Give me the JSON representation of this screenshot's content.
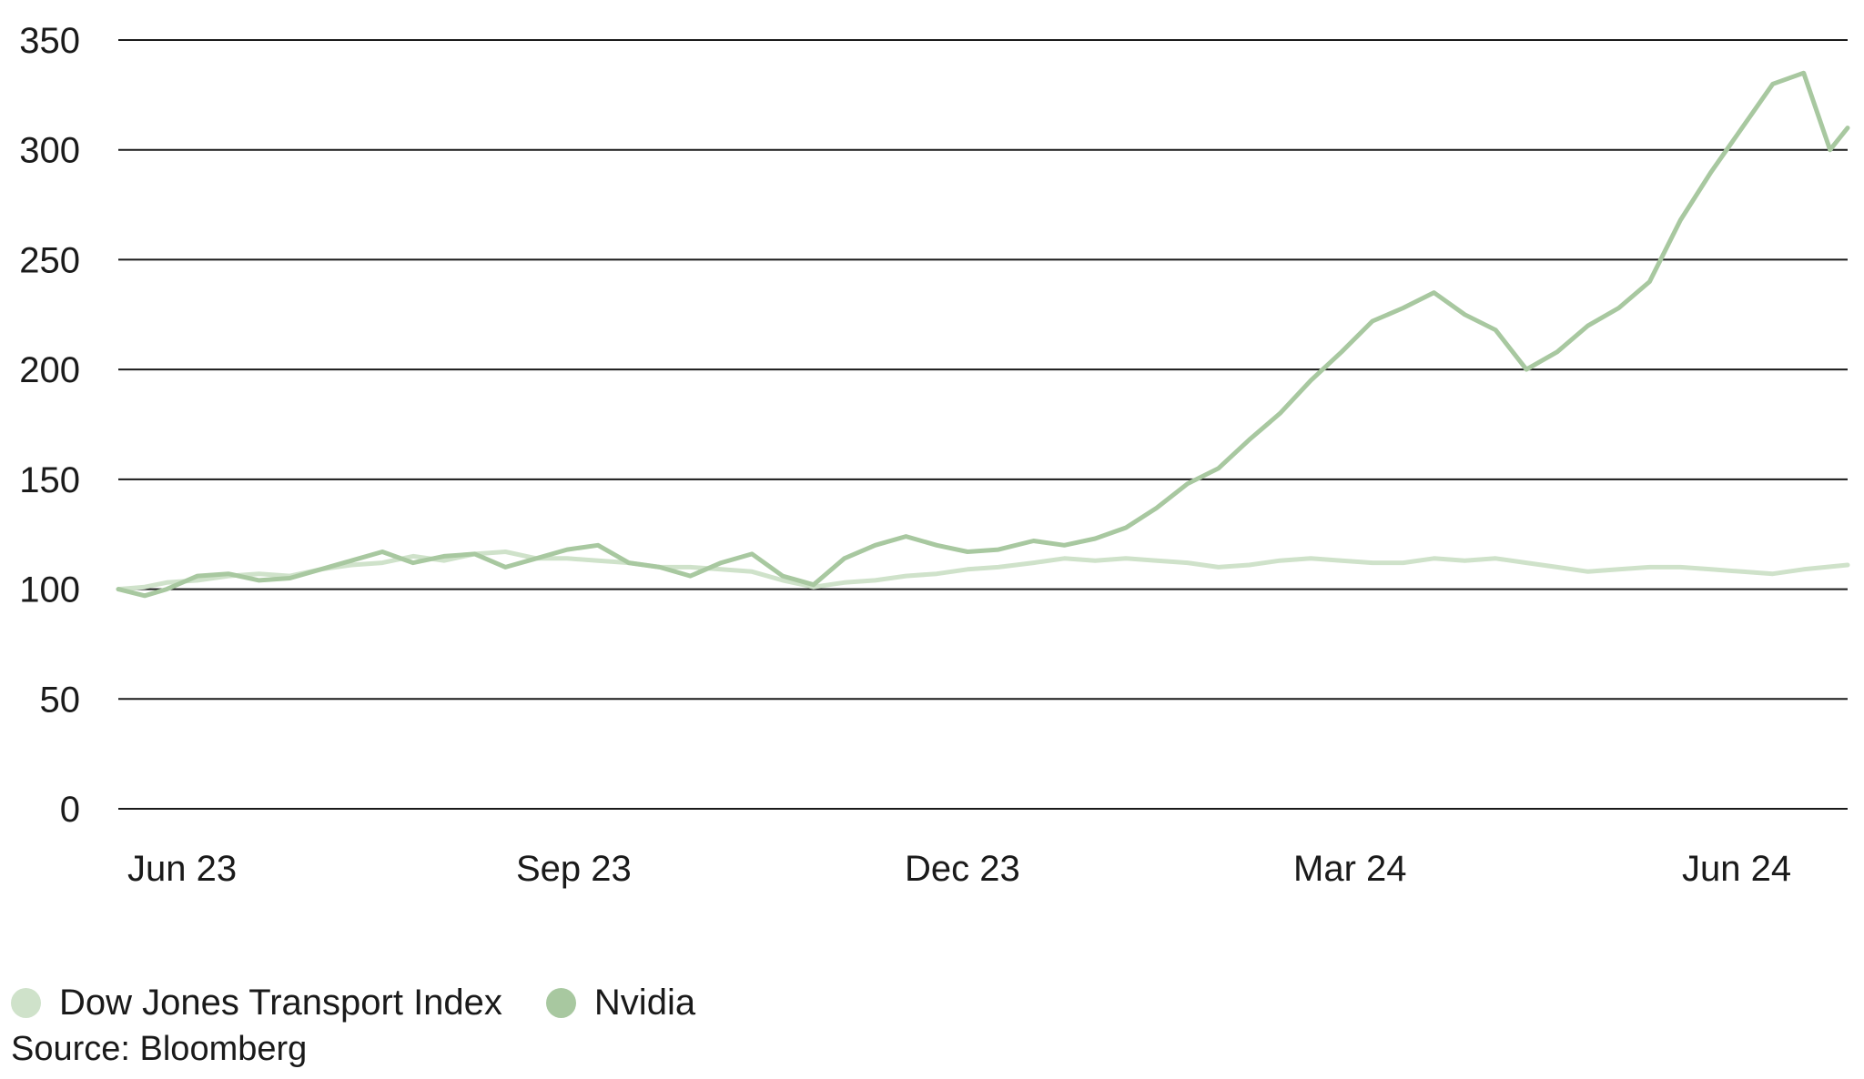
{
  "chart_data": {
    "type": "line",
    "x_ticks": [
      "Jun 23",
      "Sep 23",
      "Dec 23",
      "Mar 24",
      "Jun 24"
    ],
    "y_ticks": [
      0,
      50,
      100,
      150,
      200,
      250,
      300,
      350
    ],
    "ylim": [
      0,
      350
    ],
    "xlim": [
      "2023-06-01",
      "2024-06-28"
    ],
    "grid": "horizontal",
    "legend_position": "bottom-left",
    "series": [
      {
        "name": "Dow Jones Transport Index",
        "color": "#cfe2ca",
        "points": [
          [
            "2023-06-01",
            100
          ],
          [
            "2023-06-07",
            101
          ],
          [
            "2023-06-12",
            103
          ],
          [
            "2023-06-19",
            104
          ],
          [
            "2023-06-26",
            106
          ],
          [
            "2023-07-03",
            107
          ],
          [
            "2023-07-10",
            106
          ],
          [
            "2023-07-17",
            109
          ],
          [
            "2023-07-24",
            111
          ],
          [
            "2023-07-31",
            112
          ],
          [
            "2023-08-07",
            115
          ],
          [
            "2023-08-14",
            113
          ],
          [
            "2023-08-21",
            116
          ],
          [
            "2023-08-28",
            117
          ],
          [
            "2023-09-04",
            114
          ],
          [
            "2023-09-11",
            114
          ],
          [
            "2023-09-18",
            113
          ],
          [
            "2023-09-25",
            112
          ],
          [
            "2023-10-02",
            110
          ],
          [
            "2023-10-09",
            110
          ],
          [
            "2023-10-16",
            109
          ],
          [
            "2023-10-23",
            108
          ],
          [
            "2023-10-30",
            104
          ],
          [
            "2023-11-06",
            101
          ],
          [
            "2023-11-13",
            103
          ],
          [
            "2023-11-20",
            104
          ],
          [
            "2023-11-27",
            106
          ],
          [
            "2023-12-04",
            107
          ],
          [
            "2023-12-11",
            109
          ],
          [
            "2023-12-18",
            110
          ],
          [
            "2023-12-26",
            112
          ],
          [
            "2024-01-02",
            114
          ],
          [
            "2024-01-09",
            113
          ],
          [
            "2024-01-16",
            114
          ],
          [
            "2024-01-23",
            113
          ],
          [
            "2024-01-30",
            112
          ],
          [
            "2024-02-06",
            110
          ],
          [
            "2024-02-13",
            111
          ],
          [
            "2024-02-20",
            113
          ],
          [
            "2024-02-27",
            114
          ],
          [
            "2024-03-05",
            113
          ],
          [
            "2024-03-12",
            112
          ],
          [
            "2024-03-19",
            112
          ],
          [
            "2024-03-26",
            114
          ],
          [
            "2024-04-02",
            113
          ],
          [
            "2024-04-09",
            114
          ],
          [
            "2024-04-16",
            112
          ],
          [
            "2024-04-23",
            110
          ],
          [
            "2024-04-30",
            108
          ],
          [
            "2024-05-07",
            109
          ],
          [
            "2024-05-14",
            110
          ],
          [
            "2024-05-21",
            110
          ],
          [
            "2024-05-28",
            109
          ],
          [
            "2024-06-04",
            108
          ],
          [
            "2024-06-11",
            107
          ],
          [
            "2024-06-18",
            109
          ],
          [
            "2024-06-28",
            111
          ]
        ]
      },
      {
        "name": "Nvidia",
        "color": "#a8c8a0",
        "points": [
          [
            "2023-06-01",
            100
          ],
          [
            "2023-06-07",
            97
          ],
          [
            "2023-06-12",
            100
          ],
          [
            "2023-06-19",
            106
          ],
          [
            "2023-06-26",
            107
          ],
          [
            "2023-07-03",
            104
          ],
          [
            "2023-07-10",
            105
          ],
          [
            "2023-07-17",
            109
          ],
          [
            "2023-07-24",
            113
          ],
          [
            "2023-07-31",
            117
          ],
          [
            "2023-08-07",
            112
          ],
          [
            "2023-08-14",
            115
          ],
          [
            "2023-08-21",
            116
          ],
          [
            "2023-08-28",
            110
          ],
          [
            "2023-09-04",
            114
          ],
          [
            "2023-09-11",
            118
          ],
          [
            "2023-09-18",
            120
          ],
          [
            "2023-09-25",
            112
          ],
          [
            "2023-10-02",
            110
          ],
          [
            "2023-10-09",
            106
          ],
          [
            "2023-10-16",
            112
          ],
          [
            "2023-10-23",
            116
          ],
          [
            "2023-10-30",
            106
          ],
          [
            "2023-11-06",
            102
          ],
          [
            "2023-11-13",
            114
          ],
          [
            "2023-11-20",
            120
          ],
          [
            "2023-11-27",
            124
          ],
          [
            "2023-12-04",
            120
          ],
          [
            "2023-12-11",
            117
          ],
          [
            "2023-12-18",
            118
          ],
          [
            "2023-12-26",
            122
          ],
          [
            "2024-01-02",
            120
          ],
          [
            "2024-01-09",
            123
          ],
          [
            "2024-01-16",
            128
          ],
          [
            "2024-01-23",
            137
          ],
          [
            "2024-01-30",
            148
          ],
          [
            "2024-02-06",
            155
          ],
          [
            "2024-02-13",
            168
          ],
          [
            "2024-02-20",
            180
          ],
          [
            "2024-02-27",
            195
          ],
          [
            "2024-03-05",
            208
          ],
          [
            "2024-03-12",
            222
          ],
          [
            "2024-03-19",
            228
          ],
          [
            "2024-03-26",
            235
          ],
          [
            "2024-04-02",
            225
          ],
          [
            "2024-04-09",
            218
          ],
          [
            "2024-04-16",
            200
          ],
          [
            "2024-04-23",
            208
          ],
          [
            "2024-04-30",
            220
          ],
          [
            "2024-05-07",
            228
          ],
          [
            "2024-05-14",
            240
          ],
          [
            "2024-05-21",
            268
          ],
          [
            "2024-05-28",
            290
          ],
          [
            "2024-06-04",
            310
          ],
          [
            "2024-06-11",
            330
          ],
          [
            "2024-06-18",
            335
          ],
          [
            "2024-06-24",
            300
          ],
          [
            "2024-06-28",
            310
          ]
        ]
      }
    ]
  },
  "legend": {
    "items": [
      {
        "label": "Dow Jones Transport Index",
        "color": "#cfe2ca"
      },
      {
        "label": "Nvidia",
        "color": "#a8c8a0"
      }
    ]
  },
  "source": "Source: Bloomberg"
}
